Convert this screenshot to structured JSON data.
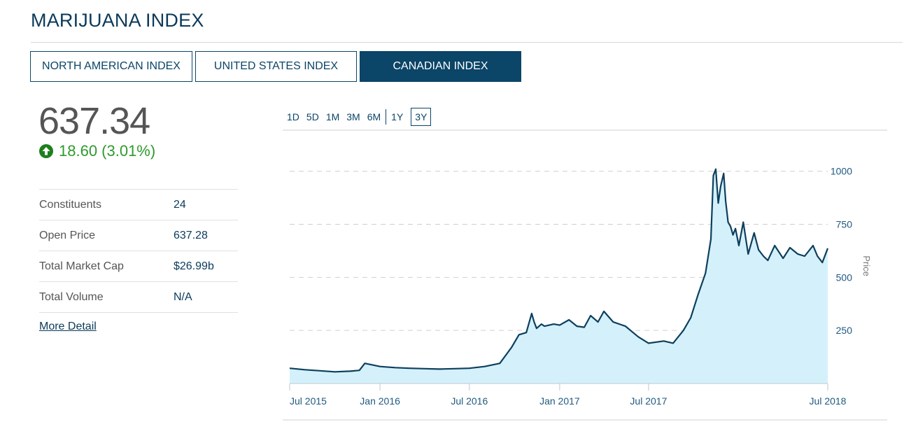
{
  "page_title": "MARIJUANA INDEX",
  "tabs": [
    {
      "label": "NORTH AMERICAN INDEX",
      "active": false
    },
    {
      "label": "UNITED STATES INDEX",
      "active": false
    },
    {
      "label": "CANADIAN INDEX",
      "active": true
    }
  ],
  "quote": {
    "price": "637.34",
    "change": "18.60 (3.01%)"
  },
  "stats": [
    {
      "label": "Constituents",
      "value": "24"
    },
    {
      "label": "Open Price",
      "value": "637.28"
    },
    {
      "label": "Total Market Cap",
      "value": "$26.99b"
    },
    {
      "label": "Total Volume",
      "value": "N/A"
    }
  ],
  "more_detail_label": "More Detail",
  "range_buttons": [
    "1D",
    "5D",
    "1M",
    "3M",
    "6M",
    "1Y",
    "3Y"
  ],
  "active_range": "3Y",
  "colors": {
    "brand": "#0b4567",
    "positive": "#2e9a2e",
    "area_fill": "#d4f1fb",
    "line": "#0d3f5e"
  },
  "chart_data": {
    "type": "area",
    "title": "",
    "xlabel": "",
    "ylabel": "Price",
    "y_ticks": [
      250,
      500,
      750,
      1000
    ],
    "ylim": [
      0,
      1050
    ],
    "x_ticks": [
      {
        "date": "2015-07-01",
        "label": "Jul 2015"
      },
      {
        "date": "2016-01-01",
        "label": "Jan 2016"
      },
      {
        "date": "2016-07-01",
        "label": "Jul 2016"
      },
      {
        "date": "2017-01-01",
        "label": "Jan 2017"
      },
      {
        "date": "2017-07-01",
        "label": "Jul 2017"
      },
      {
        "date": "2018-07-01",
        "label": "Jul 2018"
      }
    ],
    "xlim": [
      "2015-07-01",
      "2018-07-01"
    ],
    "grid": "horizontal dashed",
    "legend": "none",
    "series": [
      {
        "x": [
          "2015-07-01",
          "2015-08-01",
          "2015-09-01",
          "2015-10-01",
          "2015-11-01",
          "2015-11-20",
          "2015-12-01",
          "2016-01-01",
          "2016-02-01",
          "2016-03-01",
          "2016-04-01",
          "2016-05-01",
          "2016-06-01",
          "2016-07-01",
          "2016-08-01",
          "2016-09-01",
          "2016-09-25",
          "2016-10-10",
          "2016-10-25",
          "2016-11-05",
          "2016-11-10",
          "2016-11-15",
          "2016-11-25",
          "2016-12-01",
          "2016-12-20",
          "2017-01-01",
          "2017-01-20",
          "2017-02-05",
          "2017-02-20",
          "2017-03-05",
          "2017-03-20",
          "2017-04-01",
          "2017-04-20",
          "2017-05-15",
          "2017-06-10",
          "2017-07-01",
          "2017-08-01",
          "2017-08-20",
          "2017-09-10",
          "2017-09-25",
          "2017-10-10",
          "2017-10-25",
          "2017-11-05",
          "2017-11-10",
          "2017-11-15",
          "2017-11-20",
          "2017-11-25",
          "2017-12-01",
          "2017-12-05",
          "2017-12-10",
          "2017-12-15",
          "2017-12-20",
          "2017-12-25",
          "2018-01-01",
          "2018-01-10",
          "2018-01-20",
          "2018-02-01",
          "2018-02-10",
          "2018-02-20",
          "2018-03-01",
          "2018-03-15",
          "2018-04-01",
          "2018-04-15",
          "2018-05-01",
          "2018-05-15",
          "2018-06-01",
          "2018-06-10",
          "2018-06-20",
          "2018-07-01"
        ],
        "y": [
          72,
          65,
          60,
          55,
          58,
          62,
          95,
          80,
          75,
          72,
          70,
          68,
          70,
          72,
          80,
          95,
          170,
          230,
          240,
          330,
          290,
          260,
          280,
          270,
          280,
          275,
          300,
          270,
          265,
          320,
          290,
          340,
          290,
          270,
          220,
          190,
          200,
          190,
          250,
          310,
          420,
          520,
          680,
          980,
          1010,
          850,
          930,
          990,
          860,
          760,
          740,
          700,
          730,
          650,
          760,
          610,
          710,
          630,
          600,
          580,
          650,
          590,
          640,
          610,
          600,
          650,
          600,
          570,
          637
        ]
      }
    ]
  }
}
